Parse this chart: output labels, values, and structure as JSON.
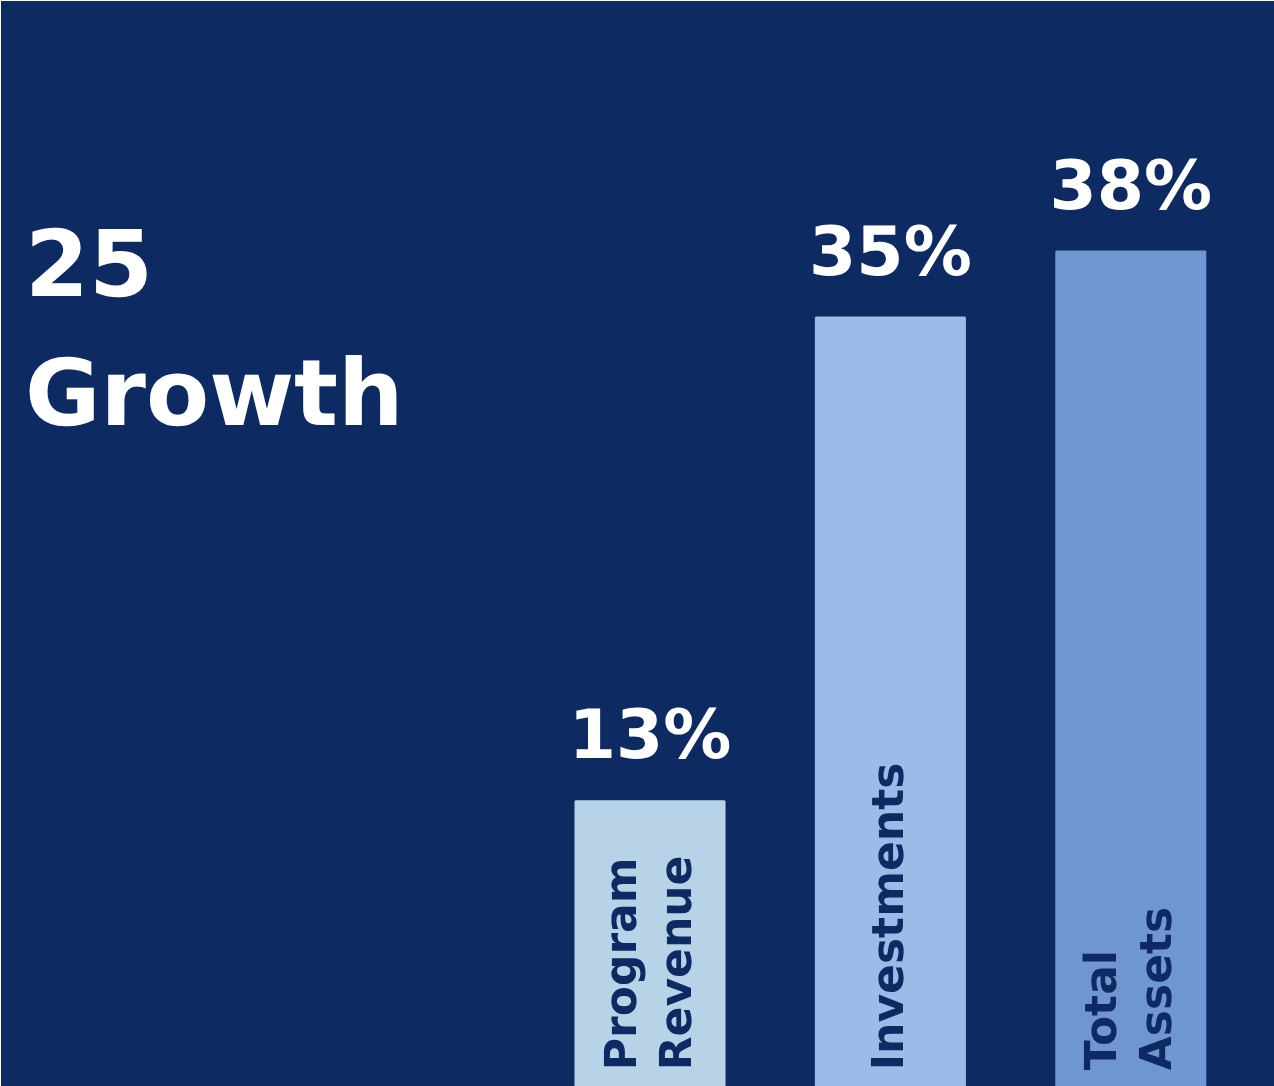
{
  "chart_data": {
    "type": "bar",
    "title": "25\nGrowth",
    "categories": [
      "Program Revenue",
      "Investments",
      "Total Assets"
    ],
    "values": [
      13,
      35,
      38
    ],
    "value_labels": [
      "13%",
      "35%",
      "38%"
    ],
    "colors": [
      "#b8d3e8",
      "#9dbbe8",
      "#7096d2"
    ],
    "grid": false
  }
}
